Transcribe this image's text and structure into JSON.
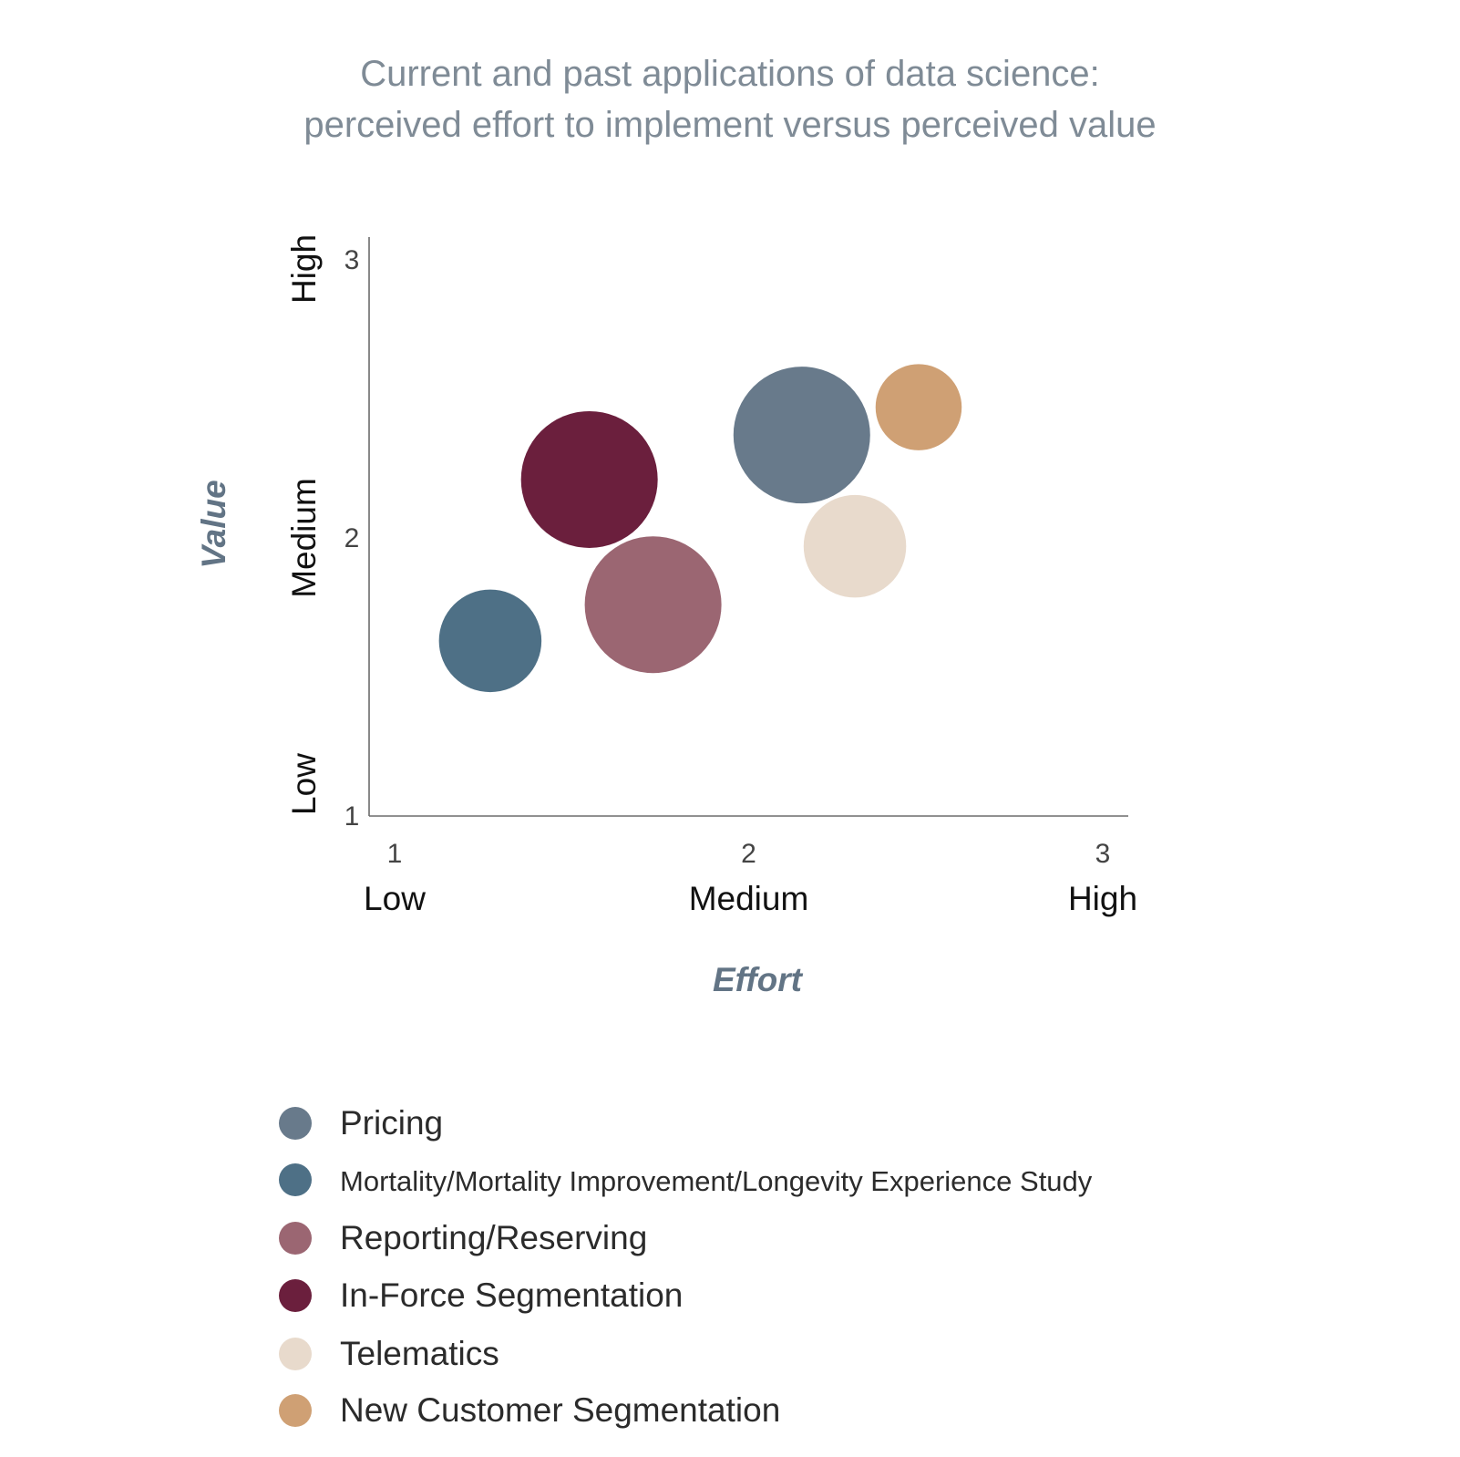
{
  "chart_data": {
    "type": "bubble",
    "title": "Current and past applications of data science:",
    "subtitle": "perceived effort to implement versus perceived value",
    "xlabel": "Effort",
    "ylabel": "Value",
    "xlim": [
      1,
      3
    ],
    "ylim": [
      1,
      3
    ],
    "x_ticks": [
      1,
      2,
      3
    ],
    "y_ticks": [
      1,
      2,
      3
    ],
    "x_tick_labels": [
      "1",
      "2",
      "3"
    ],
    "y_tick_labels": [
      "1",
      "2",
      "3"
    ],
    "x_categories": [
      "Low",
      "Medium",
      "High"
    ],
    "y_categories": [
      "Low",
      "Medium",
      "High"
    ],
    "legend_position": "bottom",
    "series": [
      {
        "name": "Pricing",
        "x": 2.15,
        "y": 2.37,
        "size": 1.0,
        "color": "#687a8b"
      },
      {
        "name": "Mortality/Mortality Improvement/Longevity Experience Study",
        "x": 1.27,
        "y": 1.63,
        "size": 0.75,
        "color": "#4e7086"
      },
      {
        "name": "Reporting/Reserving",
        "x": 1.73,
        "y": 1.76,
        "size": 1.0,
        "color": "#9b6672"
      },
      {
        "name": "In-Force Segmentation",
        "x": 1.55,
        "y": 2.21,
        "size": 1.0,
        "color": "#6b1f3d"
      },
      {
        "name": "Telematics",
        "x": 2.3,
        "y": 1.97,
        "size": 0.75,
        "color": "#e8dacc"
      },
      {
        "name": "New Customer Segmentation",
        "x": 2.48,
        "y": 2.47,
        "size": 0.63,
        "color": "#cfa074"
      }
    ]
  }
}
